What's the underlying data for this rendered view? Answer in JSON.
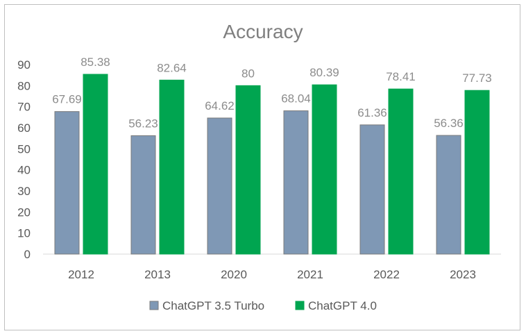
{
  "chart_data": {
    "type": "bar",
    "title": "Accuracy",
    "xlabel": "",
    "ylabel": "",
    "categories": [
      "2012",
      "2013",
      "2020",
      "2021",
      "2022",
      "2023"
    ],
    "series": [
      {
        "name": "ChatGPT 3.5 Turbo",
        "values": [
          67.69,
          56.23,
          64.62,
          68.04,
          61.36,
          56.36
        ],
        "labels": [
          "67.69",
          "56.23",
          "64.62",
          "68.04",
          "61.36",
          "56.36"
        ],
        "color": "#7f98b5",
        "stroke": "#7a7a7a"
      },
      {
        "name": "ChatGPT 4.0",
        "values": [
          85.38,
          82.64,
          80,
          80.39,
          78.41,
          77.73
        ],
        "labels": [
          "85.38",
          "82.64",
          "80",
          "80.39",
          "78.41",
          "77.73"
        ],
        "color": "#00a550",
        "stroke": "#00a550"
      }
    ],
    "ylim": [
      0,
      90
    ],
    "yticks": [
      "0",
      "10",
      "20",
      "30",
      "40",
      "50",
      "60",
      "70",
      "80",
      "90"
    ],
    "grid": false,
    "legend_position": "bottom"
  }
}
